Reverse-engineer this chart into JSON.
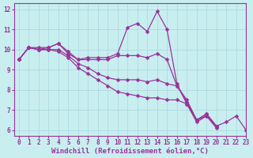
{
  "xlabel": "Windchill (Refroidissement éolien,°C)",
  "background_color": "#c8eef0",
  "line_color": "#993399",
  "xlim": [
    -0.5,
    23
  ],
  "ylim": [
    5.7,
    12.3
  ],
  "yticks": [
    6,
    7,
    8,
    9,
    10,
    11,
    12
  ],
  "xticks": [
    0,
    1,
    2,
    3,
    4,
    5,
    6,
    7,
    8,
    9,
    10,
    11,
    12,
    13,
    14,
    15,
    16,
    17,
    18,
    19,
    20,
    21,
    22,
    23
  ],
  "curves": [
    {
      "x": [
        0,
        1,
        2,
        3,
        4,
        5,
        6,
        7,
        8,
        9,
        10,
        11,
        12,
        13,
        14,
        15,
        16,
        17,
        18,
        19,
        20,
        21,
        22,
        23
      ],
      "y": [
        9.5,
        10.1,
        10.1,
        10.1,
        10.3,
        9.9,
        9.5,
        9.6,
        9.6,
        9.6,
        9.8,
        11.1,
        11.3,
        10.9,
        11.9,
        11.0,
        8.3,
        7.3,
        6.4,
        6.7,
        6.1,
        null,
        null,
        null
      ]
    },
    {
      "x": [
        0,
        1,
        2,
        3,
        4,
        5,
        6,
        7,
        8,
        9,
        10,
        11,
        12,
        13,
        14,
        15,
        16,
        17,
        18,
        19,
        20,
        21,
        22,
        23
      ],
      "y": [
        9.5,
        10.1,
        10.0,
        10.1,
        10.3,
        9.8,
        9.5,
        9.5,
        9.5,
        9.5,
        9.7,
        9.7,
        9.7,
        9.6,
        9.8,
        9.5,
        8.2,
        7.4,
        6.5,
        6.8,
        6.2,
        null,
        null,
        null
      ]
    },
    {
      "x": [
        0,
        1,
        2,
        3,
        4,
        5,
        6,
        7,
        8,
        9,
        10,
        11,
        12,
        13,
        14,
        15,
        16,
        17,
        18,
        19,
        20,
        21,
        22,
        23
      ],
      "y": [
        9.5,
        10.1,
        10.0,
        10.0,
        10.0,
        9.7,
        9.3,
        9.1,
        8.8,
        8.6,
        8.5,
        8.5,
        8.5,
        8.4,
        8.5,
        8.3,
        8.2,
        7.5,
        6.5,
        6.8,
        6.2,
        null,
        null,
        null
      ]
    },
    {
      "x": [
        0,
        1,
        2,
        3,
        4,
        5,
        6,
        7,
        8,
        9,
        10,
        11,
        12,
        13,
        14,
        15,
        16,
        17,
        18,
        19,
        20,
        21,
        22,
        23
      ],
      "y": [
        9.5,
        10.1,
        10.0,
        10.0,
        9.9,
        9.6,
        9.1,
        8.8,
        8.5,
        8.2,
        7.9,
        7.8,
        7.7,
        7.6,
        7.6,
        7.5,
        7.5,
        7.3,
        6.5,
        6.7,
        6.2,
        6.4,
        6.7,
        6.0
      ]
    }
  ],
  "grid_color": "#a8d8dc",
  "marker": "D",
  "marker_size": 2.5,
  "line_width": 0.9,
  "tick_fontsize": 5.5,
  "xlabel_fontsize": 6.5
}
